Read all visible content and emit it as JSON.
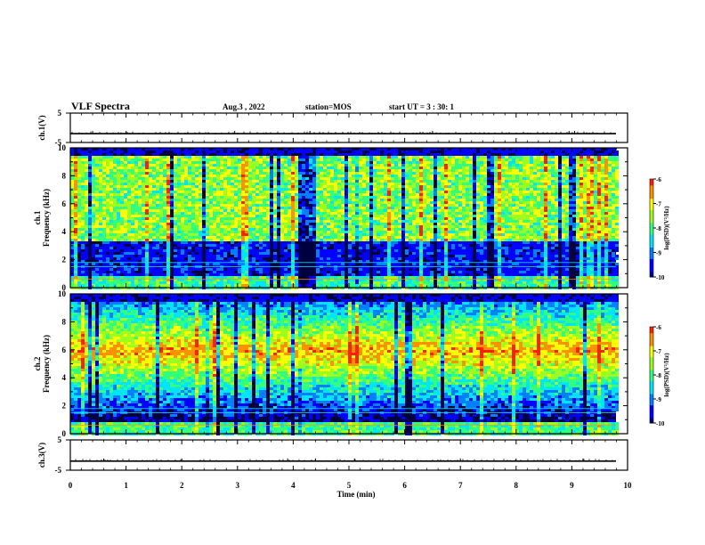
{
  "header": {
    "title": "VLF Spectra",
    "date": "Aug.3 , 2022",
    "station": "station=MOS",
    "start": "start UT = 3 : 30: 1"
  },
  "colors": {
    "cmap": [
      "#00007a",
      "#0000ff",
      "#0080ff",
      "#00e5ff",
      "#30ff80",
      "#9cff20",
      "#ffff00",
      "#ff9000",
      "#ff2000",
      "#ffffff"
    ],
    "background": "#000040"
  },
  "chart_data": [
    {
      "type": "line",
      "name": "ch1-voltage",
      "ylabel": "ch.1(V)",
      "ylim": [
        -5,
        5
      ],
      "yticks": [
        "5",
        "-5"
      ],
      "xlim": [
        0,
        10
      ],
      "baseline": -2,
      "spikes": [
        0.4,
        1.0,
        2.95,
        4.3,
        6.5,
        8.95,
        9.05
      ]
    },
    {
      "type": "heatmap",
      "name": "ch1-spectrogram",
      "ylabel": "ch.1\nFrequency (kHz)",
      "ylim": [
        0,
        10
      ],
      "yticks": [
        "0",
        "2",
        "4",
        "6",
        "8",
        "10"
      ],
      "xlim": [
        0,
        10
      ],
      "colorbar": {
        "label": "log(PSD)(V²/Hz)",
        "range": [
          -10,
          -6
        ],
        "ticks": [
          "-6",
          "-7",
          "-8",
          "-9",
          "-10"
        ]
      },
      "band_khz": [
        3.5,
        9.5
      ],
      "peak_level": -7.2,
      "lines_khz": [
        0.6,
        1.5,
        1.8
      ]
    },
    {
      "type": "heatmap",
      "name": "ch2-spectrogram",
      "ylabel": "ch.2\nFrequency (kHz)",
      "ylim": [
        0,
        10
      ],
      "yticks": [
        "0",
        "2",
        "4",
        "6",
        "8",
        "10"
      ],
      "xlim": [
        0,
        10
      ],
      "colorbar": {
        "label": "log(PSD)(V²/Hz)",
        "range": [
          -10,
          -6
        ],
        "ticks": [
          "-6",
          "-7",
          "-8",
          "-9",
          "-10"
        ]
      },
      "band_khz": [
        2.5,
        9.5
      ],
      "peak_khz": 6,
      "peak_level": -6.8,
      "lines_khz": [
        0.6,
        1.5,
        1.8
      ]
    },
    {
      "type": "line",
      "name": "ch3-voltage",
      "ylabel": "ch.3(V)",
      "ylim": [
        -5,
        5
      ],
      "yticks": [
        "5",
        "-5"
      ],
      "xlim": [
        0,
        10
      ],
      "baseline": -2,
      "spikes": [
        0.6,
        2.0,
        3.9,
        4.4,
        5.1,
        7.0,
        8.0,
        9.2
      ]
    }
  ],
  "x_axis": {
    "label": "Time (min)",
    "ticks": [
      "0",
      "1",
      "2",
      "3",
      "4",
      "5",
      "6",
      "7",
      "8",
      "9",
      "10"
    ]
  }
}
